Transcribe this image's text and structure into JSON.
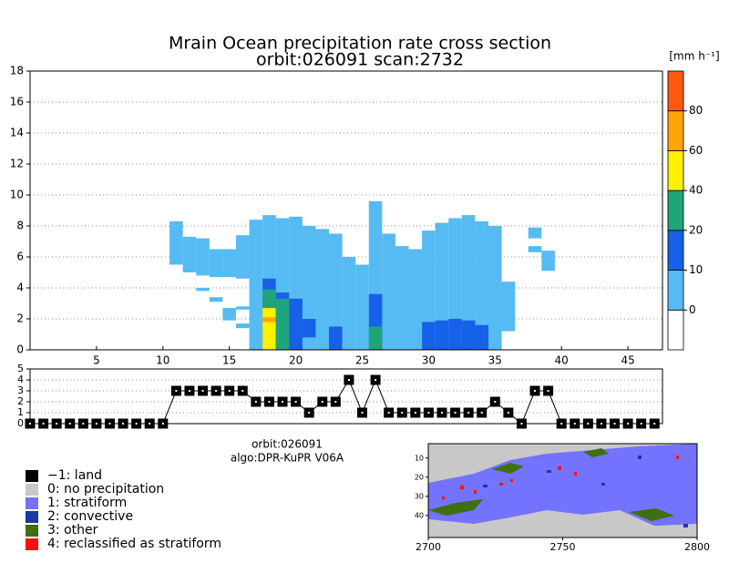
{
  "chart_data": [
    {
      "type": "heatmap",
      "title": "Mrain Ocean precipitation rate cross section",
      "subtitle": "orbit:026091    scan:2732",
      "xlim": [
        0,
        47.6
      ],
      "xticks": [
        5,
        10,
        15,
        20,
        25,
        30,
        35,
        40,
        45
      ],
      "ylim": [
        0,
        18
      ],
      "yticks": [
        0,
        2,
        4,
        6,
        8,
        10,
        12,
        14,
        16,
        18
      ],
      "grid": true,
      "colorbar": {
        "label": "[mm h⁻¹]",
        "levels": [
          0,
          10,
          20,
          40,
          60,
          80
        ],
        "colors": [
          "#ffffff",
          "#55bbf2",
          "#1661e8",
          "#1fa57a",
          "#fff000",
          "#ffa500",
          "#ff5a10"
        ]
      },
      "cells": [
        [
          11,
          5.5,
          8.3,
          5
        ],
        [
          12,
          5.0,
          7.3,
          5
        ],
        [
          13,
          4.8,
          7.2,
          5
        ],
        [
          14,
          4.7,
          6.5,
          5
        ],
        [
          15,
          4.7,
          6.5,
          5
        ],
        [
          16,
          4.6,
          7.4,
          5
        ],
        [
          13,
          3.8,
          4.0,
          5
        ],
        [
          14,
          3.1,
          3.4,
          5
        ],
        [
          15,
          1.9,
          2.7,
          5
        ],
        [
          16,
          1.4,
          1.7,
          5
        ],
        [
          16,
          2.6,
          2.8,
          5
        ],
        [
          17,
          0,
          8.4,
          5
        ],
        [
          18,
          0,
          8.7,
          5
        ],
        [
          19,
          0,
          8.5,
          5
        ],
        [
          20,
          0,
          8.6,
          5
        ],
        [
          21,
          0,
          8.0,
          5
        ],
        [
          22,
          0,
          7.8,
          5
        ],
        [
          23,
          0,
          7.5,
          5
        ],
        [
          24,
          0,
          6.0,
          5
        ],
        [
          25,
          0,
          5.5,
          5
        ],
        [
          26,
          0,
          9.6,
          5
        ],
        [
          27,
          0,
          7.5,
          5
        ],
        [
          28,
          0,
          6.7,
          5
        ],
        [
          29,
          0,
          6.5,
          5
        ],
        [
          30,
          0,
          7.7,
          5
        ],
        [
          31,
          0,
          8.2,
          5
        ],
        [
          32,
          0,
          8.5,
          5
        ],
        [
          33,
          0,
          8.7,
          5
        ],
        [
          34,
          0,
          8.3,
          5
        ],
        [
          35,
          0,
          8.0,
          5
        ],
        [
          36,
          1.2,
          4.4,
          5
        ],
        [
          38,
          7.2,
          7.9,
          5
        ],
        [
          38,
          6.3,
          6.7,
          5
        ],
        [
          39,
          5.1,
          6.4,
          5
        ],
        [
          18,
          0,
          4.6,
          15
        ],
        [
          18,
          0,
          3.9,
          25
        ],
        [
          18,
          0,
          2.7,
          45
        ],
        [
          18,
          1.8,
          2.1,
          65
        ],
        [
          19,
          0,
          3.7,
          15
        ],
        [
          19,
          0,
          3.3,
          25
        ],
        [
          20,
          0,
          3.3,
          15
        ],
        [
          21,
          0.8,
          2.0,
          15
        ],
        [
          23,
          0,
          1.5,
          15
        ],
        [
          26,
          0,
          3.6,
          15
        ],
        [
          26,
          0,
          1.5,
          25
        ],
        [
          30,
          0,
          1.8,
          15
        ],
        [
          31,
          0,
          1.9,
          15
        ],
        [
          32,
          0,
          2.0,
          15
        ],
        [
          33,
          0,
          1.9,
          15
        ],
        [
          34,
          0,
          1.6,
          15
        ]
      ]
    },
    {
      "type": "line",
      "x": [
        0,
        1,
        2,
        3,
        4,
        5,
        6,
        7,
        8,
        9,
        10,
        11,
        12,
        13,
        14,
        15,
        16,
        17,
        18,
        19,
        20,
        21,
        22,
        23,
        24,
        25,
        26,
        27,
        28,
        29,
        30,
        31,
        32,
        33,
        34,
        35,
        36,
        37,
        38,
        39,
        40,
        41,
        42,
        43,
        44,
        45,
        46,
        47
      ],
      "values": [
        0,
        0,
        0,
        0,
        0,
        0,
        0,
        0,
        0,
        0,
        0,
        3,
        3,
        3,
        3,
        3,
        3,
        2,
        2,
        2,
        2,
        1,
        2,
        2,
        4,
        1,
        4,
        1,
        1,
        1,
        1,
        1,
        1,
        1,
        1,
        2,
        1,
        0,
        3,
        3,
        0,
        0,
        0,
        0,
        0,
        0,
        0,
        0
      ],
      "xlim": [
        0,
        47.6
      ],
      "ylim": [
        0,
        5
      ],
      "yticks": [
        0,
        1,
        2,
        3,
        4,
        5
      ],
      "color": "#000000"
    },
    {
      "type": "map",
      "info": [
        "orbit:026091",
        "algo:DPR-KuPR V06A"
      ],
      "xlim": [
        2700,
        2800
      ],
      "xticks": [
        2700,
        2750,
        2800
      ],
      "ylim": [
        2.5,
        51.5
      ],
      "yticks": [
        10,
        20,
        30,
        40
      ],
      "legend": [
        {
          "name": "−1: land",
          "color": "#000000"
        },
        {
          "name": "0: no precipitation",
          "color": "#c8c8c8"
        },
        {
          "name": "1: stratiform",
          "color": "#7373ff"
        },
        {
          "name": "2: convective",
          "color": "#1a3a9e"
        },
        {
          "name": "3: other",
          "color": "#3f6f10"
        },
        {
          "name": "4: reclassified as stratiform",
          "color": "#ff1010"
        }
      ]
    }
  ]
}
